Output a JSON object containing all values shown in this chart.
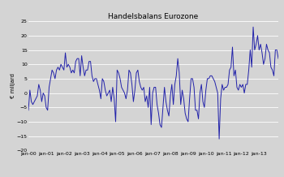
{
  "title": "Handelsbalans Eurozone",
  "ylabel": "€ miljard",
  "ylim": [
    -20,
    25
  ],
  "yticks": [
    -20,
    -15,
    -10,
    -5,
    0,
    5,
    10,
    15,
    20,
    25
  ],
  "bg_color": "#d4d4d4",
  "plot_bg_color": "#d4d4d4",
  "line_color": "#2222aa",
  "line_width": 0.7,
  "title_fontsize": 6.5,
  "ylabel_fontsize": 5,
  "tick_fontsize": 4.5,
  "x_tick_labels": [
    "jan-00",
    "jan-01",
    "jan-02",
    "jan-03",
    "jan-04",
    "jan-05",
    "jan-06",
    "jan-07",
    "jan-08",
    "jan-09",
    "jan-10",
    "jan-11",
    "jan-12",
    "jan-13"
  ],
  "values": [
    -6,
    1,
    -3,
    -4,
    -3,
    -2,
    -1,
    3,
    1,
    -3,
    0,
    -1,
    -5,
    -6,
    2,
    5,
    8,
    7,
    5,
    8,
    9,
    8,
    10,
    9,
    8,
    14,
    9,
    10,
    9,
    7,
    8,
    7,
    11,
    12,
    12,
    6,
    13,
    9,
    6,
    8,
    8,
    11,
    11,
    6,
    4,
    5,
    5,
    3,
    1,
    -2,
    5,
    4,
    1,
    -1,
    0,
    1,
    -3,
    2,
    -2,
    -10,
    8,
    7,
    5,
    2,
    1,
    0,
    -2,
    1,
    8,
    7,
    3,
    -3,
    1,
    7,
    8,
    4,
    2,
    1,
    2,
    -3,
    -1,
    -5,
    2,
    -11,
    0,
    2,
    2,
    -4,
    -7,
    -11,
    -12,
    -5,
    2,
    -3,
    -6,
    -8,
    -1,
    3,
    -4,
    3,
    6,
    12,
    7,
    -4,
    1,
    -2,
    -7,
    -9,
    -10,
    -2,
    5,
    5,
    2,
    -6,
    -6,
    -9,
    0,
    3,
    -3,
    -5,
    1,
    5,
    5,
    6,
    6,
    5,
    4,
    2,
    0,
    -16,
    -2,
    3,
    1,
    2,
    2,
    3,
    8,
    9,
    16,
    6,
    8,
    2,
    1,
    3,
    2,
    3,
    0,
    3,
    3,
    8,
    15,
    9,
    23,
    15,
    17,
    20,
    15,
    17,
    14,
    10,
    12,
    17,
    15,
    14,
    9,
    8,
    6,
    15,
    15,
    12
  ]
}
